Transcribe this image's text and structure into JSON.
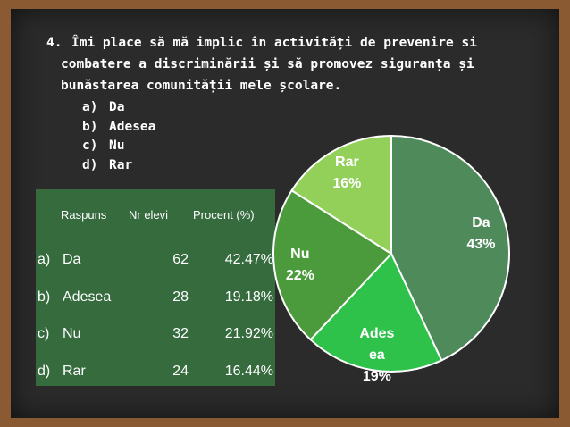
{
  "question": {
    "number": "4.",
    "lines": [
      "Îmi place să mă implic în activități de prevenire si",
      "combatere a discriminării și să promovez siguranța și",
      "bunăstarea comunității mele școlare."
    ],
    "options": [
      {
        "letter": "a)",
        "text": "Da"
      },
      {
        "letter": "b)",
        "text": "Adesea"
      },
      {
        "letter": "c)",
        "text": "Nu"
      },
      {
        "letter": "d)",
        "text": "Rar"
      }
    ]
  },
  "table": {
    "header": [
      "Raspuns",
      "Nr elevi",
      "Procent (%)"
    ],
    "rows": [
      [
        "a)",
        "Da",
        62,
        "42.47%"
      ],
      [
        "b)",
        "Adesea",
        28,
        "19.18%"
      ],
      [
        "c)",
        "Nu",
        32,
        "21.92%"
      ],
      [
        "d)",
        "Rar",
        24,
        "16.44%"
      ]
    ]
  },
  "chart_data": {
    "type": "pie",
    "categories": [
      "Da",
      "Adesea",
      "Nu",
      "Rar"
    ],
    "values": [
      43,
      19,
      22,
      16
    ],
    "value_labels": [
      "43%",
      "19%",
      "22%",
      "16%"
    ],
    "colors": [
      "#4f8a5b",
      "#2ec24a",
      "#4b9a3b",
      "#92d05a"
    ]
  }
}
